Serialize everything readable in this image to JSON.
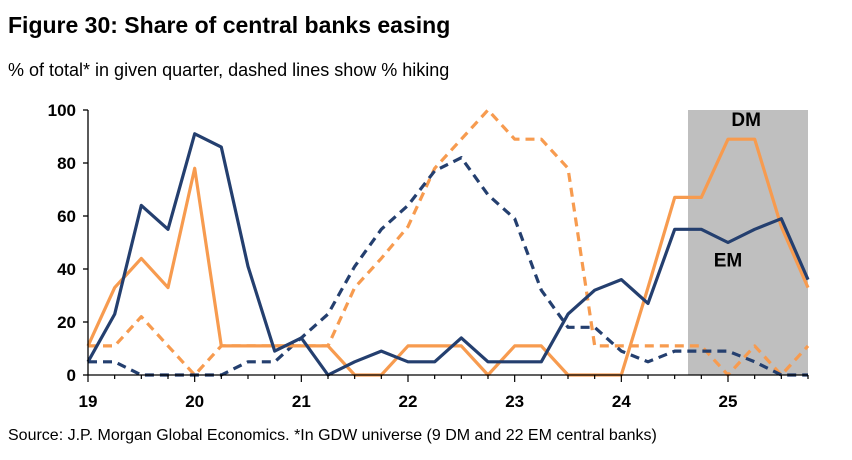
{
  "title": "Figure 30: Share of central banks easing",
  "subtitle": "% of total* in given quarter, dashed lines show % hiking",
  "source": "Source: J.P. Morgan Global Economics. *In GDW universe (9 DM and 22 EM central banks)",
  "colors": {
    "em": "#243f6f",
    "dm": "#f79b4f",
    "shade": "#bfbfbf",
    "axis": "#000000"
  },
  "chart_data": {
    "type": "line",
    "xlim": [
      19,
      25.75
    ],
    "ylim": [
      0,
      100
    ],
    "x_tick_values": [
      19,
      20,
      21,
      22,
      23,
      24,
      25
    ],
    "x_tick_labels": [
      "19",
      "20",
      "21",
      "22",
      "23",
      "24",
      "25"
    ],
    "y_tick_values": [
      0,
      20,
      40,
      60,
      80,
      100
    ],
    "y_tick_labels": [
      "0",
      "20",
      "40",
      "60",
      "80",
      "100"
    ],
    "shaded_region": [
      24.625,
      25.75
    ],
    "annotations": [
      {
        "text": "DM",
        "x": 25.17,
        "y": 94
      },
      {
        "text": "EM",
        "x": 25.0,
        "y": 41
      }
    ],
    "x": [
      19.0,
      19.25,
      19.5,
      19.75,
      20.0,
      20.25,
      20.5,
      20.75,
      21.0,
      21.25,
      21.5,
      21.75,
      22.0,
      22.25,
      22.5,
      22.75,
      23.0,
      23.25,
      23.5,
      23.75,
      24.0,
      24.25,
      24.5,
      24.75,
      25.0,
      25.25,
      25.5,
      25.75
    ],
    "series": [
      {
        "key": "em_easing",
        "color": "em",
        "dashed": false,
        "values": [
          5,
          23,
          64,
          55,
          91,
          86,
          41,
          9,
          14,
          0,
          5,
          9,
          5,
          5,
          14,
          5,
          5,
          5,
          23,
          32,
          36,
          27,
          55,
          55,
          50,
          55,
          59,
          36
        ]
      },
      {
        "key": "dm_easing",
        "color": "dm",
        "dashed": false,
        "values": [
          11,
          33,
          44,
          33,
          78,
          11,
          11,
          11,
          11,
          11,
          0,
          0,
          11,
          11,
          11,
          0,
          11,
          11,
          0,
          0,
          0,
          33,
          67,
          67,
          89,
          89,
          56,
          33
        ]
      },
      {
        "key": "em_hiking",
        "color": "em",
        "dashed": true,
        "values": [
          5,
          5,
          0,
          0,
          0,
          0,
          5,
          5,
          14,
          23,
          41,
          55,
          64,
          77,
          82,
          68,
          59,
          32,
          18,
          18,
          9,
          5,
          9,
          9,
          9,
          5,
          0,
          0
        ]
      },
      {
        "key": "dm_hiking",
        "color": "dm",
        "dashed": true,
        "values": [
          11,
          11,
          22,
          11,
          0,
          11,
          11,
          11,
          11,
          11,
          33,
          44,
          56,
          78,
          89,
          100,
          89,
          89,
          78,
          11,
          11,
          11,
          11,
          11,
          0,
          11,
          0,
          11
        ]
      }
    ]
  }
}
